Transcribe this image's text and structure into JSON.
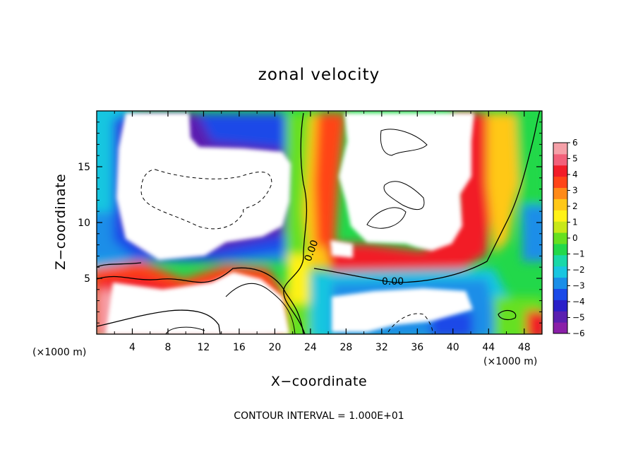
{
  "chart_data": {
    "type": "heatmap",
    "title": "zonal velocity",
    "xlabel": "X−coordinate",
    "ylabel": "Z−coordinate",
    "x_unit_label": "(×1000 m)",
    "y_unit_label": "(×1000 m)",
    "xlim": [
      0,
      50
    ],
    "ylim": [
      0,
      20
    ],
    "x_ticks": [
      4,
      8,
      12,
      16,
      20,
      24,
      28,
      32,
      36,
      40,
      44,
      48
    ],
    "x_tick_labels": [
      "4",
      "8",
      "12",
      "16",
      "20",
      "24",
      "28",
      "32",
      "36",
      "40",
      "44",
      "48"
    ],
    "y_ticks": [
      5,
      10,
      15
    ],
    "y_tick_labels": [
      "5",
      "10",
      "15"
    ],
    "colorbar": {
      "range": [
        -6,
        6
      ],
      "ticks": [
        6,
        5,
        4,
        3,
        2,
        1,
        0,
        -1,
        -2,
        -3,
        -4,
        -5,
        -6
      ],
      "tick_labels": [
        "6",
        "5",
        "4",
        "3",
        "2",
        "1",
        "0",
        "−1",
        "−2",
        "−3",
        "−4",
        "−5",
        "−6"
      ],
      "colors": [
        "#8a1fa8",
        "#5a1fb0",
        "#2a1fc8",
        "#1a4ae8",
        "#1a8ee8",
        "#19c6e0",
        "#19d8a8",
        "#22d84a",
        "#66e020",
        "#c8e818",
        "#fff218",
        "#ffc818",
        "#ff8a18",
        "#ff4418",
        "#f21c28",
        "#f2607a",
        "#f5a0a8"
      ],
      "above_below_color": "#ffffff"
    },
    "contour_labels": [
      "0.00",
      "0.00"
    ],
    "contour_interval_text": "CONTOUR INTERVAL = 1.000E+01"
  }
}
